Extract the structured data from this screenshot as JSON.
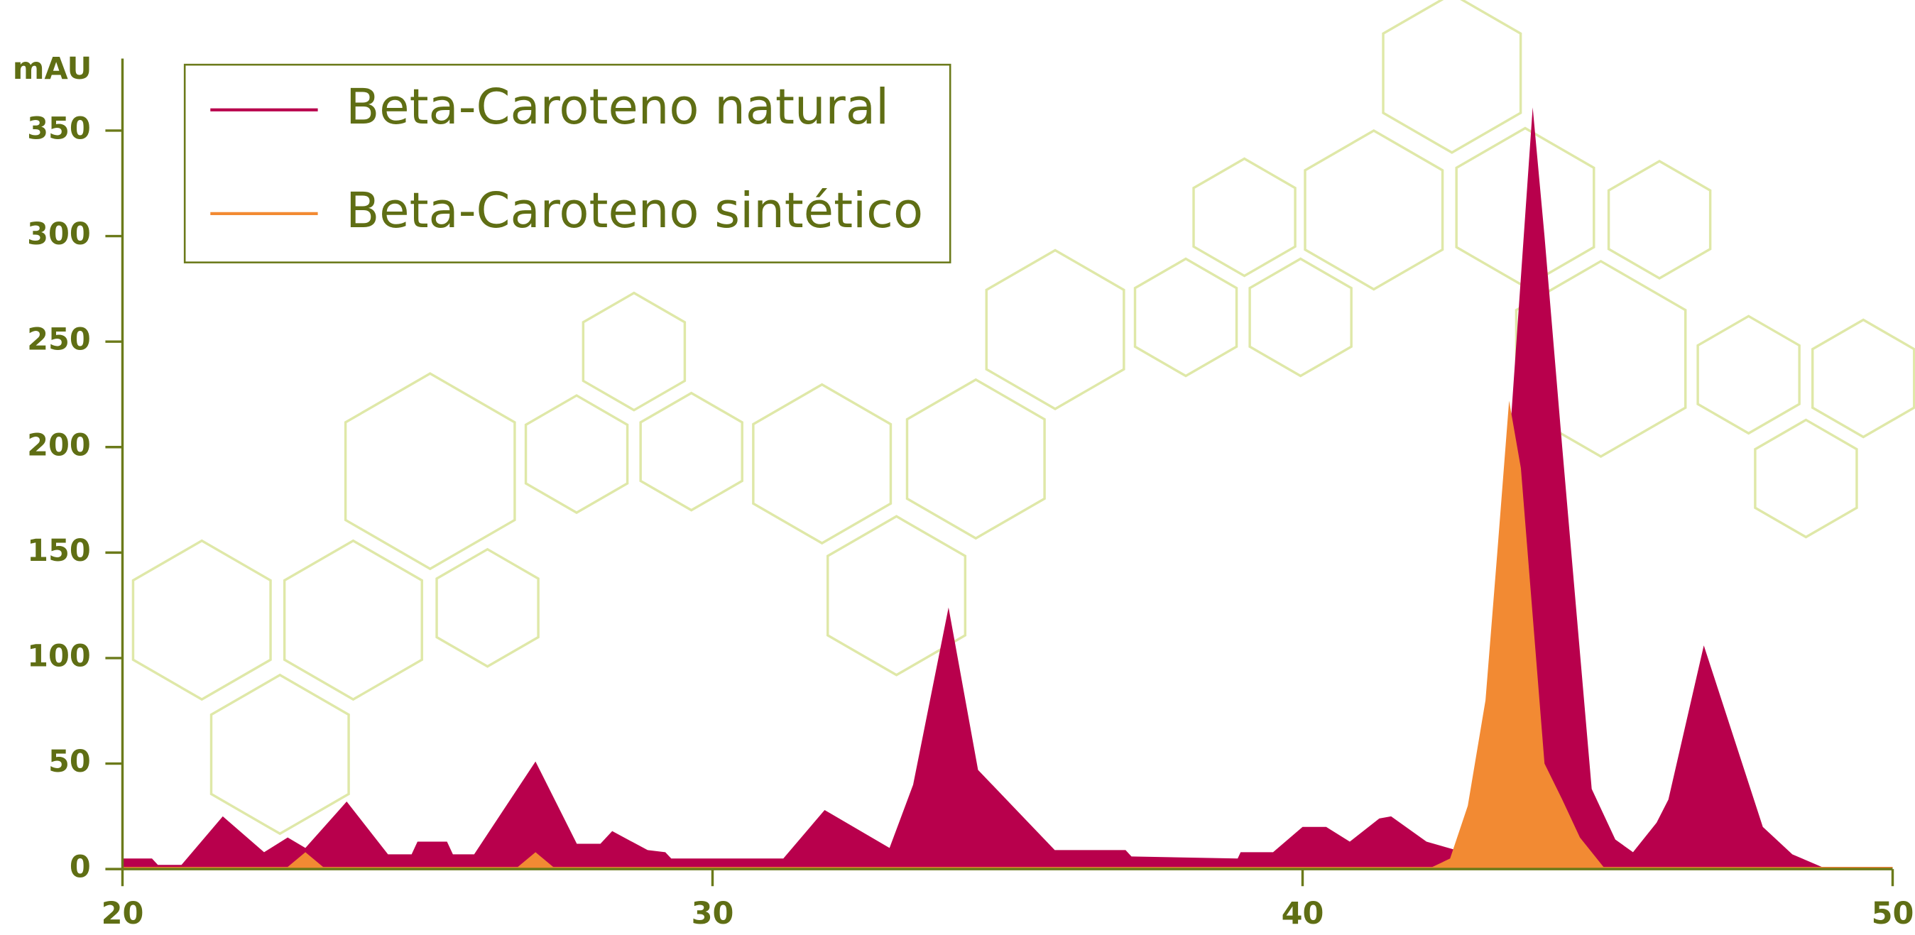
{
  "chart_data": {
    "type": "area",
    "y_label": "mAU",
    "xlim": [
      20,
      50
    ],
    "xticks": [
      20,
      30,
      40,
      50
    ],
    "ylim": [
      0,
      350
    ],
    "yticks": [
      0,
      50,
      100,
      150,
      200,
      250,
      300,
      350
    ],
    "legend": "upper left",
    "series": [
      {
        "name": "Beta-Caroteno natural",
        "color": "#b8004c",
        "x": [
          20,
          20.5,
          20.6,
          21.0,
          21.7,
          22.4,
          22.8,
          23.1,
          23.8,
          24.5,
          24.9,
          25.0,
          25.5,
          25.6,
          25.96,
          27.0,
          27.7,
          28.1,
          28.3,
          28.9,
          29.2,
          29.3,
          31.2,
          31.9,
          33.0,
          33.4,
          34.0,
          34.5,
          35.8,
          37.0,
          37.1,
          38.9,
          38.95,
          39.5,
          40.0,
          40.4,
          40.8,
          41.3,
          41.5,
          42.1,
          42.6,
          43.1,
          43.5,
          43.9,
          44.1,
          44.4,
          44.9,
          45.3,
          45.6,
          46.0,
          46.2,
          46.8,
          47.8,
          48.3,
          48.8,
          50
        ],
        "values": [
          5,
          5,
          2,
          2,
          25,
          8,
          15,
          10,
          32,
          7,
          7,
          13,
          13,
          7,
          7,
          51,
          12,
          12,
          18,
          9,
          8,
          5,
          5,
          28,
          10,
          40,
          124,
          47,
          9,
          9,
          6,
          5,
          8,
          8,
          20,
          20,
          13,
          24,
          25,
          13,
          9,
          20,
          200,
          361,
          300,
          200,
          38,
          14,
          8,
          22,
          33,
          106,
          20,
          7,
          1,
          1
        ]
      },
      {
        "name": "Beta-Caroteno sintético",
        "color": "#f28a33",
        "x": [
          20,
          22.8,
          23.1,
          23.4,
          26.7,
          27.0,
          27.3,
          42.2,
          42.5,
          42.8,
          43.1,
          43.3,
          43.5,
          43.7,
          43.9,
          44.1,
          44.4,
          44.7,
          45.1,
          50
        ],
        "values": [
          1,
          1,
          8,
          1,
          1,
          8,
          1,
          1,
          5,
          30,
          80,
          150,
          222,
          190,
          120,
          50,
          33,
          15,
          1,
          1
        ]
      }
    ]
  }
}
